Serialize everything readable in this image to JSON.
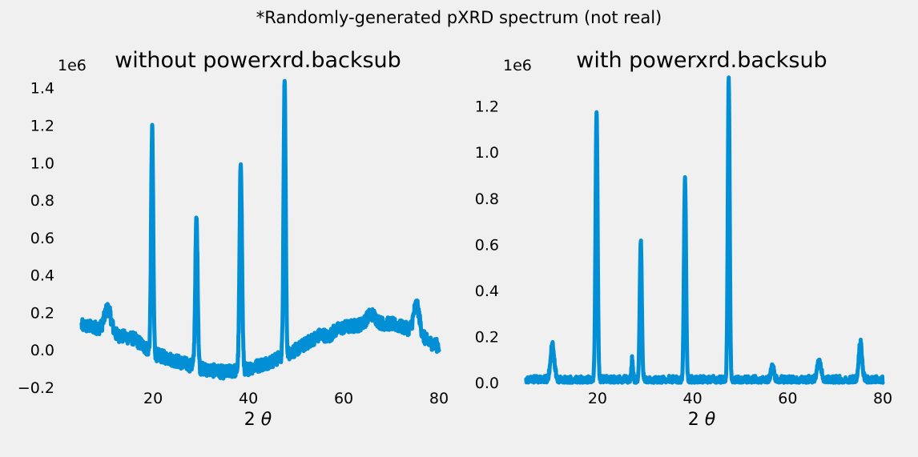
{
  "figure": {
    "suptitle": "*Randomly-generated pXRD spectrum (not real)",
    "line_color": "#008fd5",
    "background": "#f0f0f0"
  },
  "chart_data": [
    {
      "type": "line",
      "title": "without powerxrd.backsub",
      "xlabel_prefix": "2 ",
      "xlabel_symbol": "θ",
      "y_offset_label": "1e6",
      "y_scale": 1000000,
      "xlim": [
        3.5,
        80.5
      ],
      "ylim": [
        -0.2,
        1.45
      ],
      "xticks": [
        20,
        40,
        60,
        80
      ],
      "yticks": [
        -0.2,
        0.0,
        0.2,
        0.4,
        0.6,
        0.8,
        1.0,
        1.2,
        1.4
      ],
      "ytick_labels": [
        "−0.2",
        "0.0",
        "0.2",
        "0.4",
        "0.6",
        "0.8",
        "1.0",
        "1.2",
        "1.4"
      ],
      "grid": false,
      "x_range": [
        5,
        80
      ],
      "background_trend": [
        [
          5,
          0.13
        ],
        [
          8,
          0.12
        ],
        [
          12,
          0.08
        ],
        [
          16,
          0.06
        ],
        [
          20,
          -0.02
        ],
        [
          25,
          -0.06
        ],
        [
          30,
          -0.1
        ],
        [
          35,
          -0.12
        ],
        [
          40,
          -0.1
        ],
        [
          45,
          -0.06
        ],
        [
          50,
          0.0
        ],
        [
          55,
          0.08
        ],
        [
          60,
          0.12
        ],
        [
          65,
          0.14
        ],
        [
          70,
          0.14
        ],
        [
          75,
          0.1
        ],
        [
          78,
          0.04
        ],
        [
          80,
          0.02
        ]
      ],
      "peaks": [
        {
          "x": 10.5,
          "height": 0.22,
          "width": 0.7
        },
        {
          "x": 19.8,
          "height": 1.19,
          "width": 0.22
        },
        {
          "x": 29.1,
          "height": 0.7,
          "width": 0.25
        },
        {
          "x": 38.4,
          "height": 1.01,
          "width": 0.25
        },
        {
          "x": 47.6,
          "height": 1.44,
          "width": 0.22
        },
        {
          "x": 56.8,
          "height": 0.07,
          "width": 0.6
        },
        {
          "x": 65.8,
          "height": 0.19,
          "width": 0.9
        },
        {
          "x": 75.3,
          "height": 0.24,
          "width": 0.6
        }
      ],
      "noise_amplitude": 0.035
    },
    {
      "type": "line",
      "title": "with powerxrd.backsub",
      "xlabel_prefix": "2 ",
      "xlabel_symbol": "θ",
      "y_offset_label": "1e6",
      "y_scale": 1000000,
      "xlim": [
        3.5,
        80.5
      ],
      "ylim": [
        -0.02,
        1.32
      ],
      "xticks": [
        20,
        40,
        60,
        80
      ],
      "yticks": [
        0.0,
        0.2,
        0.4,
        0.6,
        0.8,
        1.0,
        1.2
      ],
      "ytick_labels": [
        "0.0",
        "0.2",
        "0.4",
        "0.6",
        "0.8",
        "1.0",
        "1.2"
      ],
      "grid": false,
      "x_range": [
        5,
        80
      ],
      "background_trend": [
        [
          5,
          0.0
        ],
        [
          80,
          0.0
        ]
      ],
      "peaks": [
        {
          "x": 10.5,
          "height": 0.15,
          "width": 0.4
        },
        {
          "x": 19.8,
          "height": 1.17,
          "width": 0.22
        },
        {
          "x": 27.3,
          "height": 0.09,
          "width": 0.15
        },
        {
          "x": 29.1,
          "height": 0.61,
          "width": 0.22
        },
        {
          "x": 38.4,
          "height": 0.88,
          "width": 0.22
        },
        {
          "x": 47.6,
          "height": 1.31,
          "width": 0.2
        },
        {
          "x": 56.8,
          "height": 0.07,
          "width": 0.3
        },
        {
          "x": 66.6,
          "height": 0.09,
          "width": 0.4
        },
        {
          "x": 75.3,
          "height": 0.16,
          "width": 0.35
        }
      ],
      "noise_amplitude": 0.03
    }
  ]
}
